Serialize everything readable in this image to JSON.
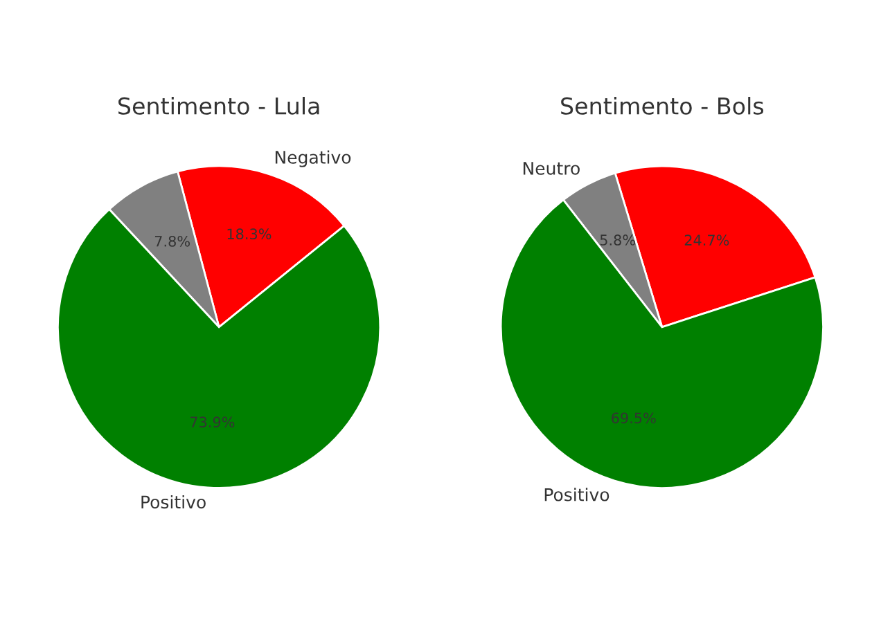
{
  "chart_data": [
    {
      "type": "pie",
      "title": "Sentimento - Lula",
      "categories": [
        "Negativo",
        null,
        "Positivo"
      ],
      "values": [
        18.3,
        7.8,
        73.9
      ],
      "colors": [
        "#ff0000",
        "#808080",
        "#008000"
      ],
      "value_labels": [
        "18.3%",
        "7.8%",
        "73.9%"
      ]
    },
    {
      "type": "pie",
      "title": "Sentimento - Bols",
      "categories": [
        null,
        "Neutro",
        "Positivo"
      ],
      "values": [
        24.7,
        5.8,
        69.5
      ],
      "colors": [
        "#ff0000",
        "#808080",
        "#008000"
      ],
      "value_labels": [
        "24.7%",
        "5.8%",
        "69.5%"
      ]
    }
  ]
}
